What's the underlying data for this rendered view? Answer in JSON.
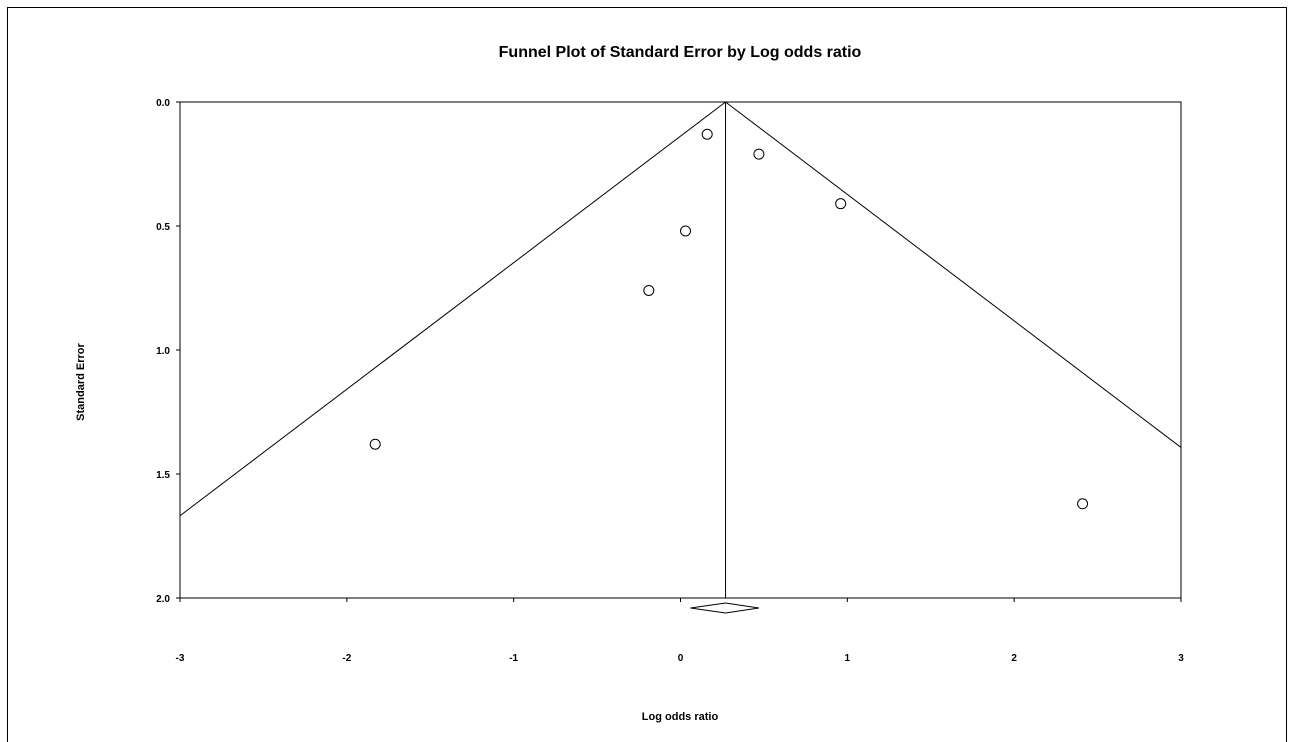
{
  "chart_data": {
    "type": "scatter",
    "title": "Funnel Plot of Standard Error by Log odds ratio",
    "xlabel": "Log odds ratio",
    "ylabel": "Standard Error",
    "xlim": [
      -3,
      3
    ],
    "ylim": [
      0,
      2
    ],
    "y_inverted": true,
    "x_ticks": [
      "-3",
      "-2",
      "-1",
      "0",
      "1",
      "2",
      "3"
    ],
    "y_ticks": [
      "0.0",
      "0.5",
      "1.0",
      "1.5",
      "2.0"
    ],
    "grid": false,
    "summary_estimate": 0.27,
    "summary_ci": [
      0.06,
      0.47
    ],
    "funnel_lines": true,
    "points": [
      {
        "x": 0.16,
        "y": 0.13
      },
      {
        "x": 0.47,
        "y": 0.21
      },
      {
        "x": 0.96,
        "y": 0.41
      },
      {
        "x": 0.03,
        "y": 0.52
      },
      {
        "x": -0.19,
        "y": 0.76
      },
      {
        "x": -1.83,
        "y": 1.38
      },
      {
        "x": 2.41,
        "y": 1.62
      }
    ],
    "colors": {
      "line": "#000000",
      "marker_fill": "#ffffff"
    }
  }
}
